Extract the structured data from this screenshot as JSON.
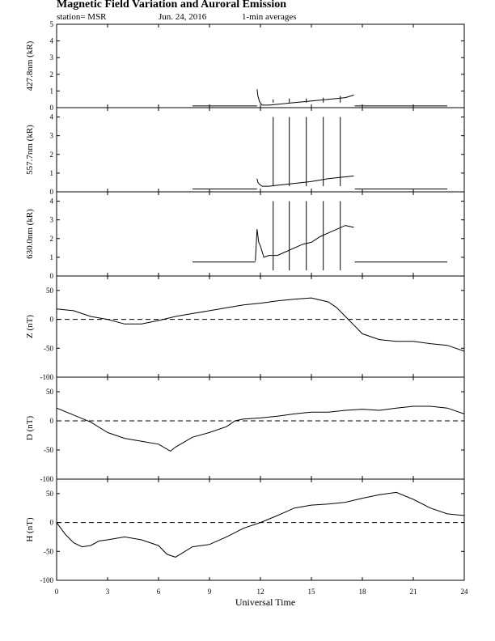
{
  "header": {
    "title": "Magnetic Field Variation and Auroral Emission",
    "station": "station= MSR",
    "date": "Jun. 24, 2016",
    "averaging": "1-min averages"
  },
  "chart_data": {
    "type": "line",
    "xlabel": "Universal Time",
    "x_unit": "hours UT",
    "xlim": [
      0,
      24
    ],
    "xticks": [
      0,
      3,
      6,
      9,
      12,
      15,
      18,
      21,
      24
    ],
    "panels": [
      {
        "id": "p4278",
        "ylabel": "427.8nm (kR)",
        "ylim": [
          0,
          5
        ],
        "yticks": [
          0,
          1,
          2,
          3,
          4,
          5
        ],
        "zero_line": false,
        "series": [
          {
            "x": [
              8.0,
              11.8
            ],
            "y": [
              0.1,
              0.1
            ]
          },
          {
            "x": [
              11.8,
              11.85,
              11.95,
              12.1,
              12.5,
              13,
              14,
              15,
              16,
              17,
              17.5
            ],
            "y": [
              1.1,
              0.7,
              0.35,
              0.15,
              0.15,
              0.2,
              0.3,
              0.4,
              0.5,
              0.6,
              0.75
            ]
          },
          {
            "x": [
              17.55,
              23.0
            ],
            "y": [
              0.1,
              0.1
            ]
          }
        ],
        "spikes": [
          [
            12.75,
            0.5
          ],
          [
            13.7,
            0.55
          ],
          [
            14.7,
            0.55
          ],
          [
            15.7,
            0.6
          ],
          [
            16.7,
            0.7
          ]
        ]
      },
      {
        "id": "p5577",
        "ylabel": "557.7nm (kR)",
        "ylim": [
          0,
          4.5
        ],
        "yticks": [
          0,
          1,
          2,
          3,
          4
        ],
        "zero_line": false,
        "series": [
          {
            "x": [
              8.0,
              11.8
            ],
            "y": [
              0.15,
              0.15
            ]
          },
          {
            "x": [
              11.8,
              11.85,
              11.95,
              12.1,
              12.5,
              13,
              14,
              15,
              16,
              17,
              17.5
            ],
            "y": [
              0.7,
              0.5,
              0.4,
              0.3,
              0.3,
              0.35,
              0.45,
              0.55,
              0.7,
              0.8,
              0.85
            ]
          },
          {
            "x": [
              17.55,
              23.0
            ],
            "y": [
              0.15,
              0.15
            ]
          }
        ],
        "spikes": [
          [
            12.75,
            4.0
          ],
          [
            13.7,
            4.0
          ],
          [
            14.7,
            4.0
          ],
          [
            15.7,
            4.0
          ],
          [
            16.7,
            4.0
          ]
        ]
      },
      {
        "id": "p6300",
        "ylabel": "630.0nm (kR)",
        "ylim": [
          0,
          4.5
        ],
        "yticks": [
          0,
          1,
          2,
          3,
          4
        ],
        "zero_line": false,
        "series": [
          {
            "x": [
              8.0,
              11.7
            ],
            "y": [
              0.75,
              0.75
            ]
          },
          {
            "x": [
              11.7,
              11.8,
              11.9,
              12.0,
              12.2,
              12.5,
              13,
              13.5,
              14,
              14.5,
              15,
              15.5,
              16,
              16.5,
              17,
              17.5
            ],
            "y": [
              0.8,
              2.5,
              1.8,
              1.6,
              1.0,
              1.1,
              1.1,
              1.3,
              1.5,
              1.7,
              1.8,
              2.1,
              2.3,
              2.5,
              2.7,
              2.6
            ]
          },
          {
            "x": [
              17.55,
              23.0
            ],
            "y": [
              0.75,
              0.75
            ]
          }
        ],
        "spikes": [
          [
            12.75,
            4.0
          ],
          [
            13.7,
            4.0
          ],
          [
            14.7,
            4.0
          ],
          [
            15.7,
            4.0
          ],
          [
            16.7,
            4.0
          ]
        ]
      },
      {
        "id": "pZ",
        "ylabel": "Z (nT)",
        "ylim": [
          -100,
          75
        ],
        "yticks": [
          -100,
          -50,
          0,
          50
        ],
        "zero_line": true,
        "series": [
          {
            "x": [
              0,
              1,
              2,
              3,
              4,
              5,
              6,
              7,
              8,
              9,
              10,
              11,
              12,
              13,
              14,
              15,
              16,
              16.5,
              17,
              17.5,
              18,
              19,
              20,
              21,
              22,
              23,
              24
            ],
            "y": [
              18,
              15,
              5,
              0,
              -8,
              -8,
              -2,
              5,
              10,
              15,
              20,
              25,
              28,
              32,
              35,
              37,
              30,
              20,
              5,
              -10,
              -25,
              -35,
              -38,
              -38,
              -42,
              -45,
              -55
            ]
          }
        ]
      },
      {
        "id": "pD",
        "ylabel": "D (nT)",
        "ylim": [
          -100,
          75
        ],
        "yticks": [
          -100,
          -50,
          0,
          50
        ],
        "zero_line": true,
        "series": [
          {
            "x": [
              0,
              1,
              2,
              3,
              4,
              5,
              6,
              6.7,
              7,
              8,
              9,
              10,
              10.5,
              11,
              12,
              13,
              14,
              15,
              16,
              17,
              18,
              19,
              20,
              21,
              22,
              23,
              24
            ],
            "y": [
              22,
              10,
              -2,
              -20,
              -30,
              -35,
              -40,
              -52,
              -45,
              -28,
              -20,
              -10,
              0,
              3,
              5,
              8,
              12,
              15,
              15,
              18,
              20,
              18,
              22,
              25,
              25,
              22,
              12
            ]
          }
        ]
      },
      {
        "id": "pH",
        "ylabel": "H (nT)",
        "ylim": [
          -100,
          75
        ],
        "yticks": [
          -100,
          -50,
          0,
          50
        ],
        "zero_line": true,
        "series": [
          {
            "x": [
              0,
              0.5,
              1,
              1.5,
              2,
              2.5,
              3,
              4,
              5,
              6,
              6.5,
              7,
              8,
              9,
              10,
              11,
              12,
              13,
              14,
              15,
              16,
              17,
              18,
              19,
              20,
              21,
              22,
              23,
              24
            ],
            "y": [
              0,
              -20,
              -35,
              -42,
              -40,
              -32,
              -30,
              -25,
              -30,
              -40,
              -55,
              -60,
              -42,
              -38,
              -25,
              -10,
              0,
              12,
              25,
              30,
              32,
              35,
              42,
              48,
              52,
              40,
              25,
              15,
              12
            ]
          }
        ]
      }
    ]
  }
}
